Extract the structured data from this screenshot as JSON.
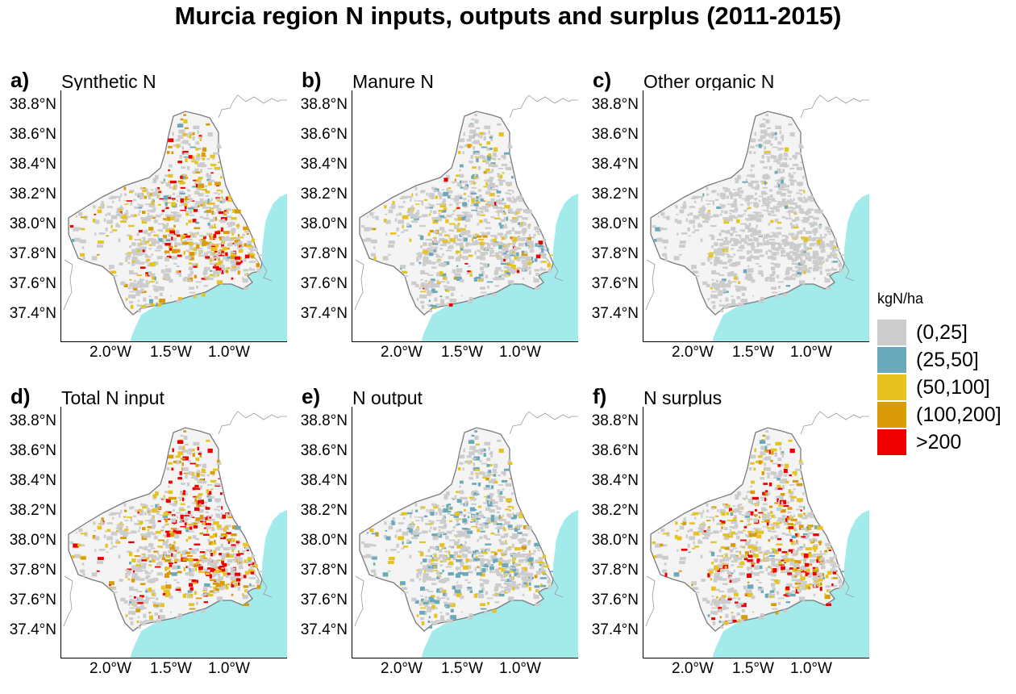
{
  "title": "Murcia region N inputs, outputs and surplus (2011-2015)",
  "axes": {
    "y_ticks": [
      "38.8°N",
      "38.6°N",
      "38.4°N",
      "38.2°N",
      "38.0°N",
      "37.8°N",
      "37.6°N",
      "37.4°N"
    ],
    "x_ticks": [
      "2.0°W",
      "1.5°W",
      "1.0°W"
    ]
  },
  "legend": {
    "title": "kgN/ha",
    "items": [
      {
        "label": "(0,25]",
        "color": "#cccccc"
      },
      {
        "label": "(25,50]",
        "color": "#6aa9ba"
      },
      {
        "label": "(50,100]",
        "color": "#e6c321"
      },
      {
        "label": "(100,200]",
        "color": "#d99c08"
      },
      {
        "label": ">200",
        "color": "#ee0000"
      }
    ]
  },
  "colors": {
    "sea": "#a3ebeb",
    "border": "#7a7a7a",
    "background": "#ffffff"
  },
  "panels": [
    {
      "letter": "a)",
      "name": "Synthetic N",
      "mix": {
        "grey": 0.55,
        "blue": 0.02,
        "yellow": 0.18,
        "orange": 0.12,
        "red": 0.13
      }
    },
    {
      "letter": "b)",
      "name": "Manure N",
      "mix": {
        "grey": 0.7,
        "blue": 0.13,
        "yellow": 0.14,
        "orange": 0.02,
        "red": 0.01
      }
    },
    {
      "letter": "c)",
      "name": "Other organic N",
      "mix": {
        "grey": 0.95,
        "blue": 0.02,
        "yellow": 0.03,
        "orange": 0.0,
        "red": 0.0
      }
    },
    {
      "letter": "d)",
      "name": "Total N input",
      "mix": {
        "grey": 0.45,
        "blue": 0.03,
        "yellow": 0.17,
        "orange": 0.17,
        "red": 0.18
      }
    },
    {
      "letter": "e)",
      "name": "N output",
      "mix": {
        "grey": 0.62,
        "blue": 0.22,
        "yellow": 0.14,
        "orange": 0.02,
        "red": 0.0
      }
    },
    {
      "letter": "f)",
      "name": "N surplus",
      "mix": {
        "grey": 0.52,
        "blue": 0.05,
        "yellow": 0.17,
        "orange": 0.14,
        "red": 0.12
      }
    }
  ]
}
